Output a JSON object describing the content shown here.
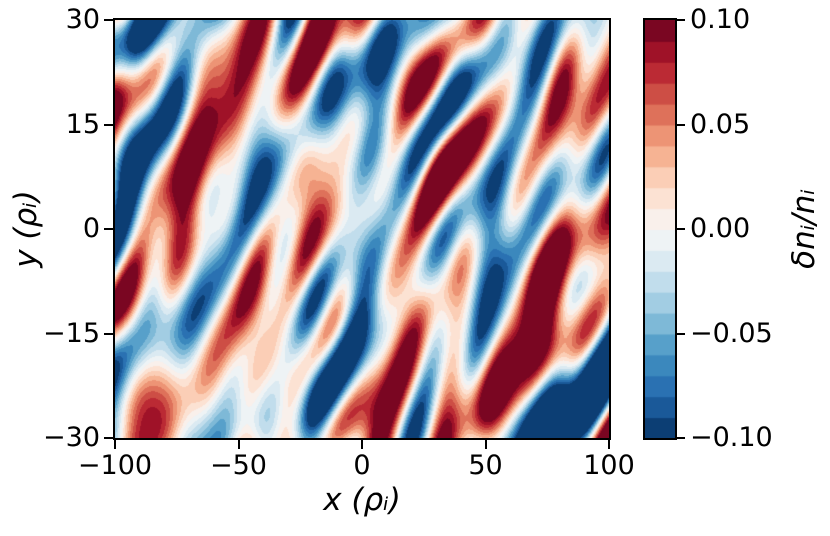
{
  "chart_data": {
    "type": "heatmap",
    "title": "",
    "xlabel": "x (ρᵢ)",
    "ylabel": "y (ρᵢ)",
    "colorbar_label": "δnᵢ/nᵢ",
    "x_range": [
      -100,
      100
    ],
    "y_range": [
      -30,
      30
    ],
    "value_range": [
      -0.1,
      0.1
    ],
    "grid": false,
    "legend_position": "colorbar-right",
    "n_levels": 20,
    "x_ticks": [
      {
        "value": -100,
        "label": "−100"
      },
      {
        "value": -50,
        "label": "−50"
      },
      {
        "value": 0,
        "label": "0"
      },
      {
        "value": 50,
        "label": "50"
      },
      {
        "value": 100,
        "label": "100"
      }
    ],
    "y_ticks": [
      {
        "value": 30,
        "label": "30"
      },
      {
        "value": 15,
        "label": "15"
      },
      {
        "value": 0,
        "label": "0"
      },
      {
        "value": -15,
        "label": "−15"
      },
      {
        "value": -30,
        "label": "−30"
      }
    ],
    "colorbar_ticks": [
      {
        "value": 0.1,
        "label": "0.10"
      },
      {
        "value": 0.05,
        "label": "0.05"
      },
      {
        "value": 0.0,
        "label": "0.00"
      },
      {
        "value": -0.05,
        "label": "−0.05"
      },
      {
        "value": -0.1,
        "label": "−0.10"
      }
    ],
    "colormap": {
      "name": "RdBu_r",
      "stops": [
        "#053061",
        "#2166ac",
        "#4393c3",
        "#92c5de",
        "#d1e5f0",
        "#f7f7f7",
        "#fddbc7",
        "#f4a582",
        "#d6604d",
        "#b2182b",
        "#67001f"
      ]
    },
    "field_scale": 0.9,
    "field_modes": [
      [
        0.03,
        0.06,
        -0.12,
        0.5
      ],
      [
        0.028,
        0.1,
        -0.2,
        2.1
      ],
      [
        0.026,
        0.14,
        -0.26,
        4.0
      ],
      [
        0.024,
        0.18,
        -0.15,
        1.2
      ],
      [
        0.022,
        0.08,
        -0.3,
        5.3
      ],
      [
        0.03,
        0.05,
        -0.08,
        3.3
      ],
      [
        0.02,
        0.22,
        -0.32,
        0.9
      ],
      [
        0.025,
        0.12,
        -0.1,
        2.7
      ],
      [
        0.018,
        0.26,
        -0.2,
        4.8
      ],
      [
        0.022,
        0.09,
        -0.26,
        1.8
      ],
      [
        0.02,
        0.16,
        -0.36,
        3.9
      ],
      [
        0.017,
        0.3,
        -0.28,
        0.2
      ],
      [
        0.024,
        0.07,
        -0.18,
        5.8
      ],
      [
        0.016,
        0.2,
        -0.42,
        2.4
      ],
      [
        0.021,
        0.11,
        -0.34,
        4.4
      ],
      [
        0.015,
        0.24,
        -0.12,
        1.5
      ],
      [
        0.019,
        0.13,
        -0.06,
        3.1
      ],
      [
        0.014,
        0.28,
        -0.38,
        5.1
      ],
      [
        0.022,
        0.04,
        -0.24,
        0.7
      ],
      [
        0.016,
        0.18,
        -0.3,
        2.9
      ],
      [
        0.013,
        0.32,
        -0.16,
        4.6
      ],
      [
        0.02,
        0.06,
        -0.38,
        1.0
      ],
      [
        0.015,
        0.21,
        -0.06,
        3.6
      ],
      [
        0.012,
        0.34,
        -0.34,
        5.6
      ],
      [
        0.018,
        0.15,
        -0.2,
        0.4
      ],
      [
        0.013,
        0.25,
        -0.44,
        2.2
      ],
      [
        0.017,
        0.09,
        -0.04,
        4.2
      ],
      [
        0.011,
        0.36,
        -0.24,
        1.7
      ],
      [
        0.016,
        0.05,
        -0.32,
        3.4
      ],
      [
        0.012,
        0.23,
        -0.26,
        5.9
      ],
      [
        0.019,
        0.12,
        -0.44,
        0.8
      ],
      [
        0.01,
        0.38,
        -0.1,
        2.6
      ],
      [
        0.015,
        0.17,
        -0.12,
        4.9
      ],
      [
        0.011,
        0.29,
        -0.06,
        1.3
      ],
      [
        0.014,
        0.08,
        -0.2,
        3.8
      ],
      [
        0.01,
        0.33,
        -0.42,
        5.4
      ],
      [
        0.012,
        0.14,
        0.08,
        2.0
      ],
      [
        0.01,
        0.22,
        0.14,
        4.1
      ],
      [
        0.011,
        0.1,
        0.18,
        0.3
      ]
    ]
  }
}
